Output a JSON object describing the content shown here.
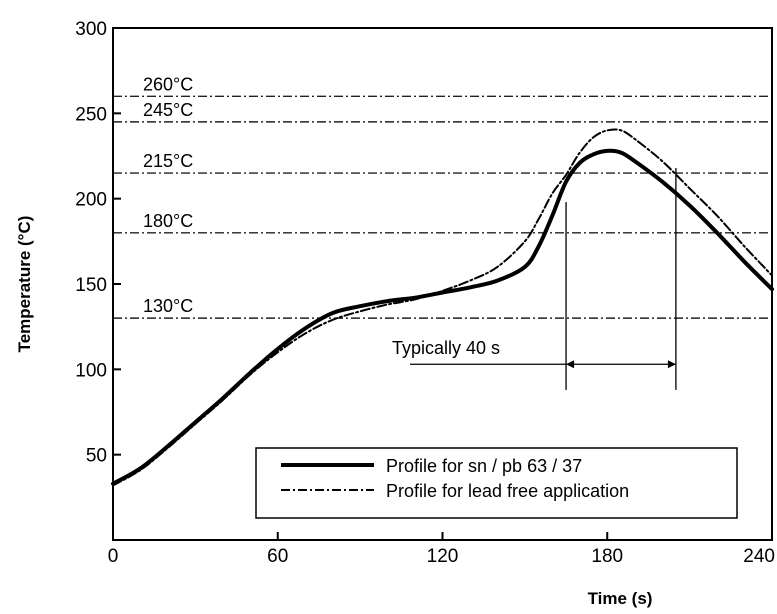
{
  "chart_data": {
    "type": "line",
    "xlabel": "Time (s)",
    "ylabel": "Temperature (°C)",
    "xlim": [
      0,
      240
    ],
    "ylim": [
      0,
      300
    ],
    "x_ticks": [
      0,
      60,
      120,
      180,
      240
    ],
    "y_ticks": [
      50,
      100,
      150,
      200,
      250,
      300
    ],
    "x_tick_labels": [
      "0",
      "60",
      "120",
      "180",
      "240"
    ],
    "y_tick_labels": [
      "50",
      "100",
      "150",
      "200",
      "250",
      "300"
    ],
    "grid": false,
    "reference_lines": [
      {
        "value": 260,
        "label": "260°C"
      },
      {
        "value": 245,
        "label": "245°C"
      },
      {
        "value": 215,
        "label": "215°C"
      },
      {
        "value": 180,
        "label": "180°C"
      },
      {
        "value": 130,
        "label": "130°C"
      }
    ],
    "series": [
      {
        "name": "Profile for sn / pb 63 / 37",
        "style": "solid",
        "color": "#000000",
        "points": [
          [
            0,
            33
          ],
          [
            10,
            42
          ],
          [
            20,
            55
          ],
          [
            30,
            69
          ],
          [
            40,
            83
          ],
          [
            50,
            98
          ],
          [
            60,
            112
          ],
          [
            70,
            124
          ],
          [
            80,
            133
          ],
          [
            90,
            137
          ],
          [
            100,
            140
          ],
          [
            110,
            142
          ],
          [
            120,
            145
          ],
          [
            130,
            148
          ],
          [
            140,
            152
          ],
          [
            150,
            160
          ],
          [
            155,
            172
          ],
          [
            160,
            190
          ],
          [
            165,
            210
          ],
          [
            170,
            221
          ],
          [
            175,
            226
          ],
          [
            180,
            228
          ],
          [
            185,
            227
          ],
          [
            190,
            222
          ],
          [
            200,
            210
          ],
          [
            210,
            196
          ],
          [
            220,
            180
          ],
          [
            230,
            163
          ],
          [
            240,
            147
          ]
        ]
      },
      {
        "name": "Profile for lead free application",
        "style": "dashdot",
        "color": "#000000",
        "points": [
          [
            0,
            32
          ],
          [
            10,
            41
          ],
          [
            20,
            54
          ],
          [
            30,
            68
          ],
          [
            40,
            82
          ],
          [
            50,
            97
          ],
          [
            60,
            110
          ],
          [
            70,
            121
          ],
          [
            80,
            129
          ],
          [
            90,
            134
          ],
          [
            100,
            138
          ],
          [
            110,
            141
          ],
          [
            120,
            146
          ],
          [
            130,
            152
          ],
          [
            140,
            160
          ],
          [
            150,
            175
          ],
          [
            155,
            188
          ],
          [
            160,
            203
          ],
          [
            165,
            214
          ],
          [
            170,
            227
          ],
          [
            175,
            236
          ],
          [
            180,
            240
          ],
          [
            185,
            240
          ],
          [
            190,
            235
          ],
          [
            200,
            222
          ],
          [
            210,
            206
          ],
          [
            220,
            190
          ],
          [
            230,
            172
          ],
          [
            240,
            155
          ]
        ]
      }
    ],
    "annotation": {
      "text": "Typically 40 s",
      "x_start": 165,
      "x_end": 205,
      "y": 103
    },
    "legend": {
      "position": "bottom-right",
      "entries": [
        "Profile for sn / pb 63 / 37",
        "Profile for lead free application"
      ]
    }
  }
}
